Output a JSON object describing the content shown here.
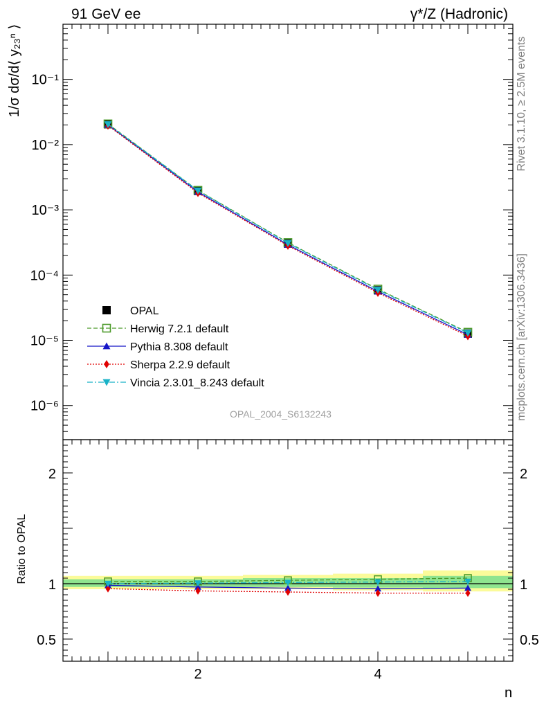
{
  "header": {
    "left": "91 GeV ee",
    "right": "γ*/Z (Hadronic)"
  },
  "side_labels": {
    "rivet": "Rivet 3.1.10, ≥ 2.5M events",
    "mcplots": "mcplots.cern.ch [arXiv:1306.3436]"
  },
  "analysis_label": "OPAL_2004_S6132243",
  "main_ylabel": "1/σ dσ/d⟨ y₂₃ⁿ ⟩",
  "ratio_ylabel": "Ratio to OPAL",
  "xlabel": "n",
  "colors": {
    "opal": "#000000",
    "herwig": "#4c9a2a",
    "pythia": "#1515c8",
    "sherpa": "#e00000",
    "vincia": "#19b2c7",
    "band_yellow": "#fbfb9a",
    "band_green": "#8fe48f"
  },
  "chart_data": [
    {
      "type": "line",
      "panel": "main",
      "yscale": "log",
      "xlim": [
        0.5,
        5.5
      ],
      "ylim": [
        3e-07,
        0.7
      ],
      "yticks": [
        {
          "value": 1e-06,
          "label": "10⁻⁶"
        },
        {
          "value": 1e-05,
          "label": "10⁻⁵"
        },
        {
          "value": 0.0001,
          "label": "10⁻⁴"
        },
        {
          "value": 0.001,
          "label": "10⁻³"
        },
        {
          "value": 0.01,
          "label": "10⁻²"
        },
        {
          "value": 0.1,
          "label": "10⁻¹"
        }
      ],
      "x": [
        1,
        2,
        3,
        4,
        5
      ],
      "legend_position": "bottom-left",
      "series": [
        {
          "key": "opal",
          "name": "OPAL",
          "marker": "square-filled",
          "line": "none",
          "values": [
            0.0205,
            0.00195,
            0.000305,
            5.85e-05,
            1.27e-05
          ]
        },
        {
          "key": "herwig",
          "name": "Herwig 7.2.1 default",
          "marker": "square-open",
          "line": "dashed",
          "values": [
            0.0208,
            0.00199,
            0.000315,
            6.1e-05,
            1.33e-05
          ]
        },
        {
          "key": "pythia",
          "name": "Pythia 8.308 default",
          "marker": "triangle-up",
          "line": "solid",
          "values": [
            0.0201,
            0.00189,
            0.000292,
            5.6e-05,
            1.22e-05
          ]
        },
        {
          "key": "sherpa",
          "name": "Sherpa 2.2.9 default",
          "marker": "diamond",
          "line": "dotted",
          "values": [
            0.0196,
            0.00182,
            0.000282,
            5.35e-05,
            1.16e-05
          ]
        },
        {
          "key": "vincia",
          "name": "Vincia 2.3.01_8.243 default",
          "marker": "triangle-down",
          "line": "dashdot",
          "values": [
            0.0205,
            0.00197,
            0.000309,
            5.95e-05,
            1.3e-05
          ]
        }
      ]
    },
    {
      "type": "line",
      "panel": "ratio",
      "xlim": [
        0.5,
        5.5
      ],
      "ylim": [
        0.3,
        2.3
      ],
      "yticks": [
        {
          "value": 0.5,
          "label": "0.5"
        },
        {
          "value": 1,
          "label": "1"
        },
        {
          "value": 2,
          "label": "2"
        }
      ],
      "xticks": [
        {
          "value": 2,
          "label": "2"
        },
        {
          "value": 4,
          "label": "4"
        }
      ],
      "x": [
        1,
        2,
        3,
        4,
        5
      ],
      "band_edges": [
        0.5,
        1.5,
        2.5,
        3.5,
        4.5,
        5.5
      ],
      "band_yellow": [
        [
          0.95,
          1.07
        ],
        [
          0.95,
          1.07
        ],
        [
          0.95,
          1.08
        ],
        [
          0.94,
          1.09
        ],
        [
          0.93,
          1.12
        ]
      ],
      "band_green": [
        [
          0.97,
          1.04
        ],
        [
          0.97,
          1.04
        ],
        [
          0.97,
          1.05
        ],
        [
          0.965,
          1.05
        ],
        [
          0.96,
          1.07
        ]
      ],
      "series": [
        {
          "key": "herwig",
          "name": "Herwig 7.2.1 default",
          "values": [
            1.02,
            1.02,
            1.03,
            1.04,
            1.05
          ]
        },
        {
          "key": "pythia",
          "name": "Pythia 8.308 default",
          "values": [
            0.985,
            0.97,
            0.96,
            0.955,
            0.96
          ]
        },
        {
          "key": "sherpa",
          "name": "Sherpa 2.2.9 default",
          "values": [
            0.955,
            0.935,
            0.925,
            0.915,
            0.915
          ]
        },
        {
          "key": "vincia",
          "name": "Vincia 2.3.01_8.243 default",
          "values": [
            1.0,
            1.005,
            1.01,
            1.015,
            1.02
          ]
        }
      ]
    }
  ]
}
